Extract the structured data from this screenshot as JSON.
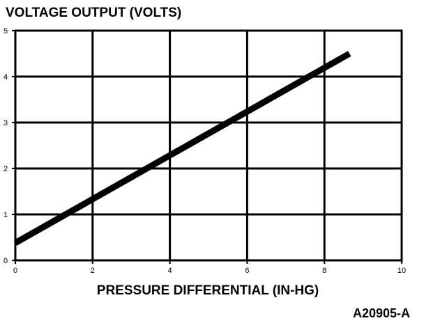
{
  "chart_data": {
    "type": "line",
    "title": "VOLTAGE OUTPUT (VOLTS)",
    "xlabel": "PRESSURE DIFFERENTIAL (IN-HG)",
    "ylabel": "",
    "figure_code": "A20905-A",
    "xlim": [
      0,
      10
    ],
    "ylim": [
      0,
      5
    ],
    "x_ticks": [
      "0",
      "2",
      "4",
      "6",
      "8",
      "10"
    ],
    "y_ticks": [
      "0",
      "1",
      "2",
      "3",
      "4",
      "5"
    ],
    "grid": true,
    "series": [
      {
        "x": [
          0,
          8.65
        ],
        "y": [
          0.38,
          4.5
        ]
      }
    ]
  }
}
